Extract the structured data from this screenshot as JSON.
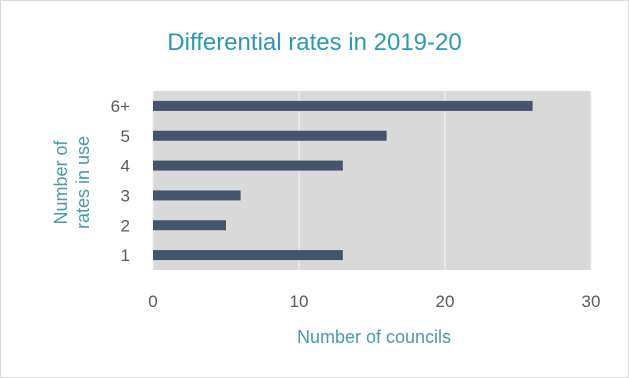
{
  "chart_data": {
    "type": "bar",
    "orientation": "horizontal",
    "title": "Differential rates in 2019-20",
    "xlabel": "Number of councils",
    "ylabel_lines": [
      "Number of",
      "rates in use"
    ],
    "categories": [
      "6+",
      "5",
      "4",
      "3",
      "2",
      "1"
    ],
    "values": [
      26,
      16,
      13,
      6,
      5,
      13
    ],
    "xlim": [
      0,
      30
    ],
    "xticks": [
      "0",
      "10",
      "20",
      "30"
    ],
    "grid": true,
    "legend": "none",
    "colors": {
      "bar": "#44546a",
      "plot_bg": "#d9d9d9",
      "grid": "#f2f2f2",
      "title": "#2e97b5",
      "axis_title": "#4a9aa8"
    }
  }
}
